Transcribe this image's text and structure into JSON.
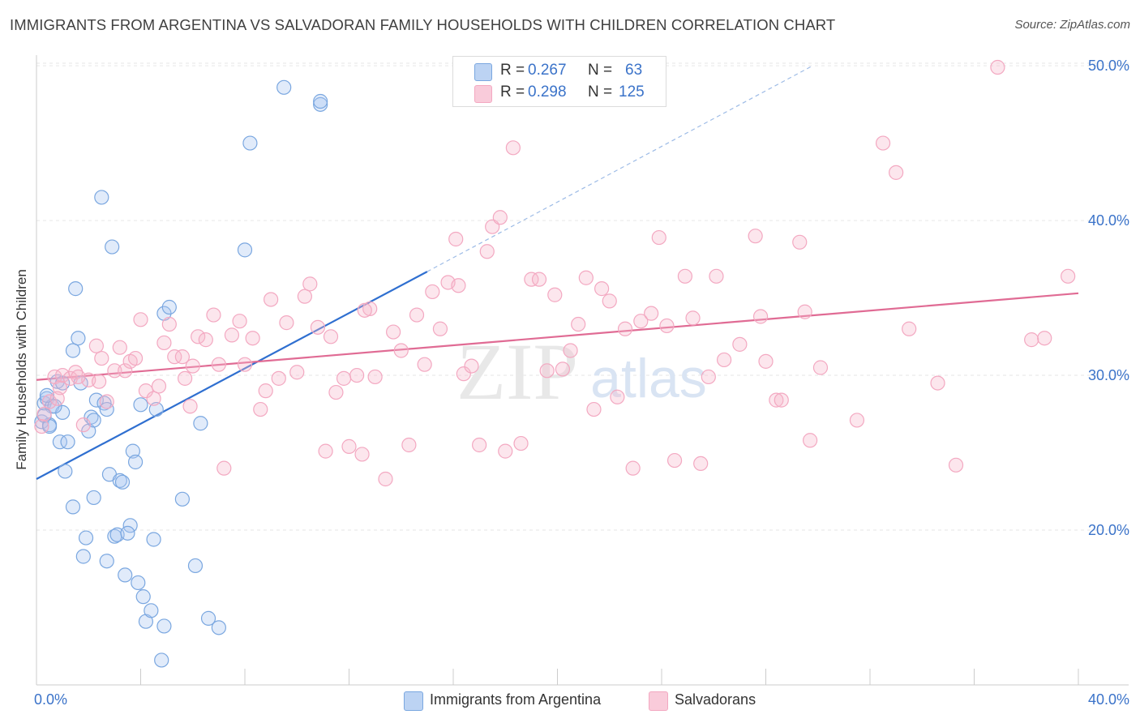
{
  "title": "IMMIGRANTS FROM ARGENTINA VS SALVADORAN FAMILY HOUSEHOLDS WITH CHILDREN CORRELATION CHART",
  "source": "Source: ZipAtlas.com",
  "watermark": {
    "zip": "ZIP",
    "atlas": "atlas"
  },
  "legend": {
    "r_label": "R =",
    "n_label": "N =",
    "rows": [
      {
        "name": "Immigrants from Argentina",
        "r": "0.267",
        "n": "63",
        "color": "#a9c6f0"
      },
      {
        "name": "Salvadorans",
        "r": "0.298",
        "n": "125",
        "color": "#f6b8cc"
      }
    ]
  },
  "chart_data": {
    "type": "scatter",
    "title": "IMMIGRANTS FROM ARGENTINA VS SALVADORAN FAMILY HOUSEHOLDS WITH CHILDREN CORRELATION CHART",
    "xlabel": "",
    "ylabel": "Family Households with Children",
    "xlim": [
      0,
      40
    ],
    "ylim": [
      10,
      51
    ],
    "x_tick_labels": [
      "0.0%",
      "40.0%"
    ],
    "y_ticks": [
      20,
      30,
      40,
      50
    ],
    "y_tick_labels": [
      "20.0%",
      "30.0%",
      "40.0%",
      "50.0%"
    ],
    "grid": true,
    "series": [
      {
        "name": "Immigrants from Argentina",
        "color": "#7aa7e0",
        "line_color": "#2f6fd0",
        "trend": {
          "x": [
            0.0,
            15.0
          ],
          "y": [
            23.3,
            36.7
          ],
          "dashed_extension": {
            "x": [
              15.0,
              29.8
            ],
            "y": [
              36.7,
              50.0
            ]
          }
        },
        "points": [
          [
            0.2,
            27.0
          ],
          [
            0.3,
            28.2
          ],
          [
            0.4,
            28.5
          ],
          [
            0.5,
            26.8
          ],
          [
            0.6,
            28.0
          ],
          [
            0.3,
            27.4
          ],
          [
            0.8,
            29.6
          ],
          [
            0.9,
            25.7
          ],
          [
            1.0,
            27.6
          ],
          [
            1.1,
            23.8
          ],
          [
            1.2,
            25.7
          ],
          [
            1.4,
            21.5
          ],
          [
            1.5,
            35.6
          ],
          [
            1.6,
            32.4
          ],
          [
            1.7,
            29.5
          ],
          [
            1.8,
            18.3
          ],
          [
            1.9,
            19.5
          ],
          [
            2.0,
            26.4
          ],
          [
            2.1,
            27.3
          ],
          [
            2.2,
            22.1
          ],
          [
            2.3,
            28.4
          ],
          [
            2.5,
            41.5
          ],
          [
            2.6,
            28.2
          ],
          [
            2.7,
            18.0
          ],
          [
            2.8,
            23.6
          ],
          [
            2.9,
            38.3
          ],
          [
            3.0,
            19.6
          ],
          [
            3.1,
            19.7
          ],
          [
            3.2,
            23.2
          ],
          [
            3.3,
            23.1
          ],
          [
            3.4,
            17.1
          ],
          [
            3.6,
            20.3
          ],
          [
            3.7,
            25.1
          ],
          [
            3.8,
            24.4
          ],
          [
            3.9,
            16.6
          ],
          [
            4.0,
            28.1
          ],
          [
            4.1,
            15.7
          ],
          [
            4.2,
            14.1
          ],
          [
            4.4,
            14.8
          ],
          [
            4.5,
            19.4
          ],
          [
            4.6,
            27.8
          ],
          [
            4.8,
            11.6
          ],
          [
            4.9,
            34.0
          ],
          [
            5.1,
            34.4
          ],
          [
            4.9,
            13.8
          ],
          [
            5.6,
            22.0
          ],
          [
            6.1,
            17.7
          ],
          [
            6.3,
            26.9
          ],
          [
            6.6,
            14.3
          ],
          [
            7.0,
            13.7
          ],
          [
            8.0,
            38.1
          ],
          [
            8.2,
            45.0
          ],
          [
            9.5,
            48.6
          ],
          [
            10.9,
            47.5
          ],
          [
            10.9,
            47.7
          ],
          [
            1.0,
            29.5
          ],
          [
            0.5,
            26.7
          ],
          [
            0.7,
            28.0
          ],
          [
            2.2,
            27.1
          ],
          [
            3.5,
            19.8
          ],
          [
            1.4,
            31.6
          ],
          [
            0.4,
            28.7
          ],
          [
            2.7,
            27.8
          ]
        ]
      },
      {
        "name": "Salvadorans",
        "color": "#f3a8c1",
        "line_color": "#e06b94",
        "trend": {
          "x": [
            0.0,
            40.0
          ],
          "y": [
            29.7,
            35.3
          ]
        },
        "points": [
          [
            0.2,
            26.7
          ],
          [
            0.3,
            27.5
          ],
          [
            0.5,
            28.3
          ],
          [
            0.7,
            29.9
          ],
          [
            0.9,
            29.2
          ],
          [
            1.0,
            30.0
          ],
          [
            1.3,
            29.8
          ],
          [
            1.5,
            30.2
          ],
          [
            1.8,
            26.8
          ],
          [
            2.0,
            29.7
          ],
          [
            2.3,
            31.9
          ],
          [
            2.5,
            31.1
          ],
          [
            2.7,
            28.3
          ],
          [
            3.0,
            30.3
          ],
          [
            3.2,
            31.8
          ],
          [
            3.4,
            30.3
          ],
          [
            3.6,
            30.9
          ],
          [
            3.8,
            31.1
          ],
          [
            4.0,
            33.6
          ],
          [
            4.2,
            29.0
          ],
          [
            4.5,
            28.5
          ],
          [
            4.7,
            29.3
          ],
          [
            4.9,
            32.1
          ],
          [
            5.1,
            33.3
          ],
          [
            5.3,
            31.2
          ],
          [
            5.6,
            31.2
          ],
          [
            5.7,
            29.8
          ],
          [
            5.9,
            28.0
          ],
          [
            6.0,
            30.6
          ],
          [
            6.2,
            32.5
          ],
          [
            6.5,
            32.3
          ],
          [
            6.8,
            33.9
          ],
          [
            7.0,
            30.7
          ],
          [
            7.2,
            24.0
          ],
          [
            7.5,
            32.6
          ],
          [
            7.8,
            33.5
          ],
          [
            8.0,
            30.7
          ],
          [
            8.3,
            32.4
          ],
          [
            8.6,
            27.8
          ],
          [
            8.8,
            29.0
          ],
          [
            9.0,
            34.9
          ],
          [
            9.3,
            29.8
          ],
          [
            9.6,
            33.4
          ],
          [
            10.0,
            30.2
          ],
          [
            10.3,
            35.1
          ],
          [
            10.5,
            35.9
          ],
          [
            10.8,
            33.1
          ],
          [
            11.1,
            25.1
          ],
          [
            11.3,
            32.5
          ],
          [
            11.5,
            28.9
          ],
          [
            11.8,
            29.8
          ],
          [
            12.0,
            25.4
          ],
          [
            12.3,
            30.0
          ],
          [
            12.5,
            24.9
          ],
          [
            12.8,
            34.3
          ],
          [
            13.0,
            29.9
          ],
          [
            13.4,
            23.3
          ],
          [
            13.7,
            32.8
          ],
          [
            14.0,
            31.6
          ],
          [
            14.3,
            25.5
          ],
          [
            14.6,
            33.9
          ],
          [
            14.9,
            30.7
          ],
          [
            15.2,
            35.4
          ],
          [
            15.5,
            33.0
          ],
          [
            15.8,
            36.0
          ],
          [
            16.1,
            38.8
          ],
          [
            16.4,
            30.1
          ],
          [
            16.7,
            30.6
          ],
          [
            17.0,
            25.5
          ],
          [
            17.3,
            38.0
          ],
          [
            17.5,
            39.6
          ],
          [
            17.8,
            40.2
          ],
          [
            18.0,
            25.1
          ],
          [
            18.3,
            44.7
          ],
          [
            18.6,
            25.6
          ],
          [
            19.0,
            36.2
          ],
          [
            19.3,
            36.2
          ],
          [
            19.6,
            30.3
          ],
          [
            19.9,
            35.2
          ],
          [
            20.2,
            30.4
          ],
          [
            20.5,
            31.6
          ],
          [
            20.8,
            33.3
          ],
          [
            21.1,
            36.3
          ],
          [
            21.4,
            27.8
          ],
          [
            21.7,
            35.6
          ],
          [
            22.0,
            34.8
          ],
          [
            22.3,
            28.6
          ],
          [
            22.6,
            33.0
          ],
          [
            22.9,
            24.0
          ],
          [
            23.2,
            33.5
          ],
          [
            23.6,
            34.0
          ],
          [
            23.9,
            38.9
          ],
          [
            24.2,
            33.2
          ],
          [
            24.5,
            24.5
          ],
          [
            24.9,
            36.4
          ],
          [
            25.2,
            33.7
          ],
          [
            25.5,
            24.3
          ],
          [
            25.8,
            29.9
          ],
          [
            26.1,
            36.4
          ],
          [
            26.4,
            31.0
          ],
          [
            27.0,
            32.0
          ],
          [
            27.6,
            39.0
          ],
          [
            27.8,
            33.8
          ],
          [
            28.0,
            30.9
          ],
          [
            28.4,
            28.4
          ],
          [
            28.6,
            28.4
          ],
          [
            29.3,
            38.6
          ],
          [
            29.5,
            34.1
          ],
          [
            29.7,
            25.8
          ],
          [
            30.1,
            30.5
          ],
          [
            31.5,
            27.1
          ],
          [
            32.5,
            45.0
          ],
          [
            33.0,
            43.1
          ],
          [
            33.5,
            33.0
          ],
          [
            34.6,
            29.5
          ],
          [
            35.3,
            24.2
          ],
          [
            36.9,
            49.9
          ],
          [
            38.2,
            32.3
          ],
          [
            38.7,
            32.4
          ],
          [
            39.6,
            36.4
          ],
          [
            0.8,
            28.5
          ],
          [
            1.6,
            29.9
          ],
          [
            2.4,
            29.6
          ],
          [
            12.6,
            34.2
          ],
          [
            16.2,
            35.8
          ]
        ]
      }
    ]
  }
}
